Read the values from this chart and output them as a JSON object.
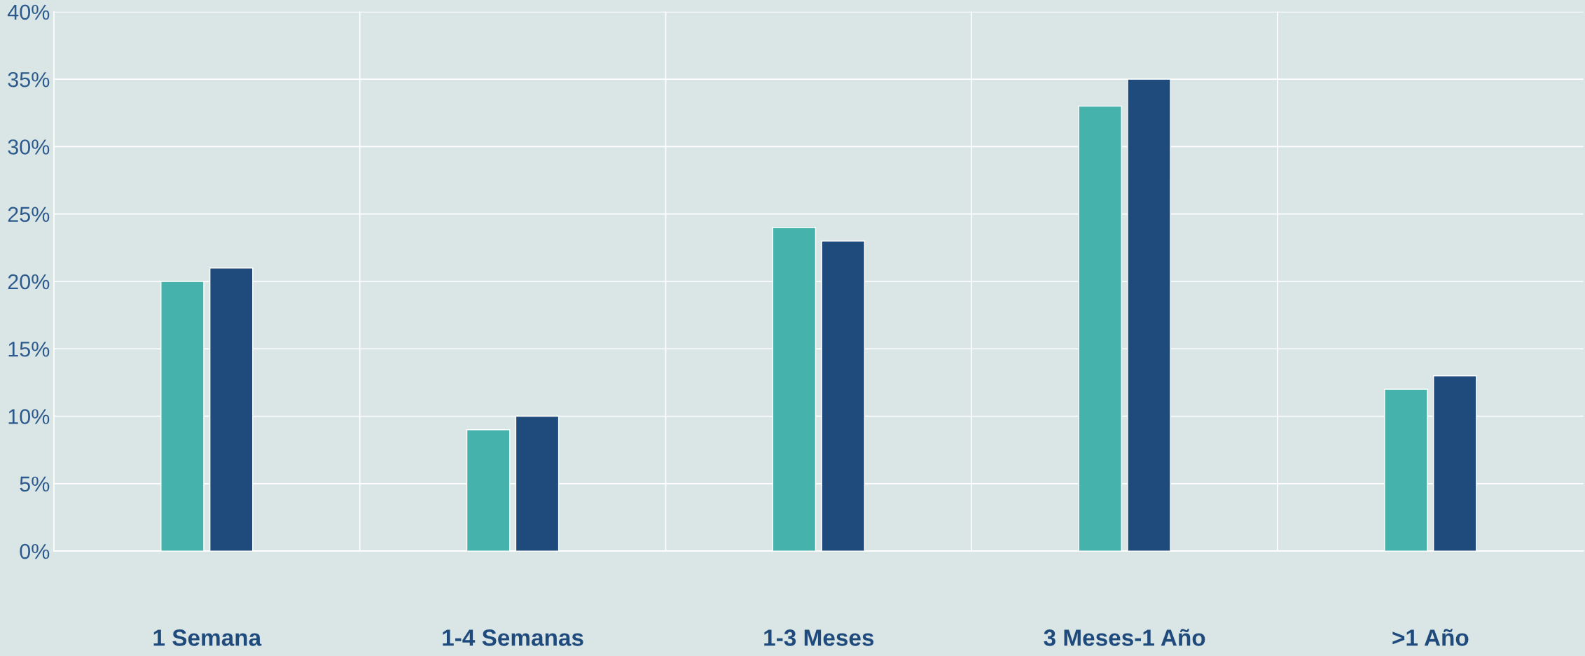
{
  "chart_data": {
    "type": "bar",
    "categories": [
      "1 Semana",
      "1-4 Semanas",
      "1-3 Meses",
      "3 Meses-1 Año",
      ">1 Año"
    ],
    "series": [
      {
        "color": "#45b3ac",
        "values": [
          20,
          9,
          24,
          33,
          12
        ]
      },
      {
        "color": "#1f4a7c",
        "values": [
          21,
          10,
          23,
          35,
          13
        ]
      }
    ],
    "ylim": [
      0,
      40
    ],
    "yticks": [
      {
        "value": 0,
        "label": "0%"
      },
      {
        "value": 5,
        "label": "5%"
      },
      {
        "value": 10,
        "label": "10%"
      },
      {
        "value": 15,
        "label": "15%"
      },
      {
        "value": 20,
        "label": "20%"
      },
      {
        "value": 25,
        "label": "25%"
      },
      {
        "value": 30,
        "label": "30%"
      },
      {
        "value": 35,
        "label": "35%"
      },
      {
        "value": 40,
        "label": "40%"
      }
    ],
    "grid": true,
    "legend": false
  }
}
